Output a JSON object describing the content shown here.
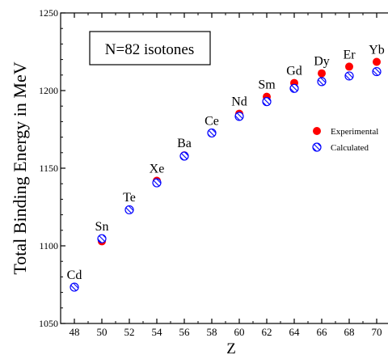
{
  "chart_data": {
    "type": "scatter",
    "title": "N=82 isotones",
    "xlabel": "Z",
    "ylabel": "Total Binding Energy in MeV",
    "xlim": [
      47,
      71
    ],
    "ylim": [
      1050,
      1250
    ],
    "x_ticks": [
      48,
      50,
      52,
      54,
      56,
      58,
      60,
      62,
      64,
      66,
      68,
      70
    ],
    "y_ticks": [
      1050,
      1100,
      1150,
      1200,
      1250
    ],
    "grid": false,
    "legend_position": "right",
    "element_labels": [
      {
        "label": "Cd",
        "x": 48
      },
      {
        "label": "Sn",
        "x": 50
      },
      {
        "label": "Te",
        "x": 52
      },
      {
        "label": "Xe",
        "x": 54
      },
      {
        "label": "Ba",
        "x": 56
      },
      {
        "label": "Ce",
        "x": 58
      },
      {
        "label": "Nd",
        "x": 60
      },
      {
        "label": "Sm",
        "x": 62
      },
      {
        "label": "Gd",
        "x": 64
      },
      {
        "label": "Dy",
        "x": 66
      },
      {
        "label": "Er",
        "x": 68
      },
      {
        "label": "Yb",
        "x": 70
      }
    ],
    "series": [
      {
        "name": "Experimental",
        "color": "#ff0000",
        "marker": "filled-circle",
        "x": [
          48,
          50,
          52,
          54,
          56,
          58,
          60,
          62,
          64,
          66,
          68,
          70
        ],
        "y": [
          1073.3,
          1102.9,
          1123.4,
          1141.9,
          1158.3,
          1172.7,
          1185.1,
          1196.0,
          1204.9,
          1211.1,
          1215.4,
          1218.5
        ]
      },
      {
        "name": "Calculated",
        "color": "#0000ff",
        "marker": "hatched-circle",
        "x": [
          48,
          50,
          52,
          54,
          56,
          58,
          60,
          62,
          64,
          66,
          68,
          70
        ],
        "y": [
          1073.4,
          1104.6,
          1123.2,
          1140.6,
          1157.8,
          1172.7,
          1183.4,
          1192.9,
          1201.4,
          1205.8,
          1209.4,
          1212.2
        ]
      }
    ]
  }
}
